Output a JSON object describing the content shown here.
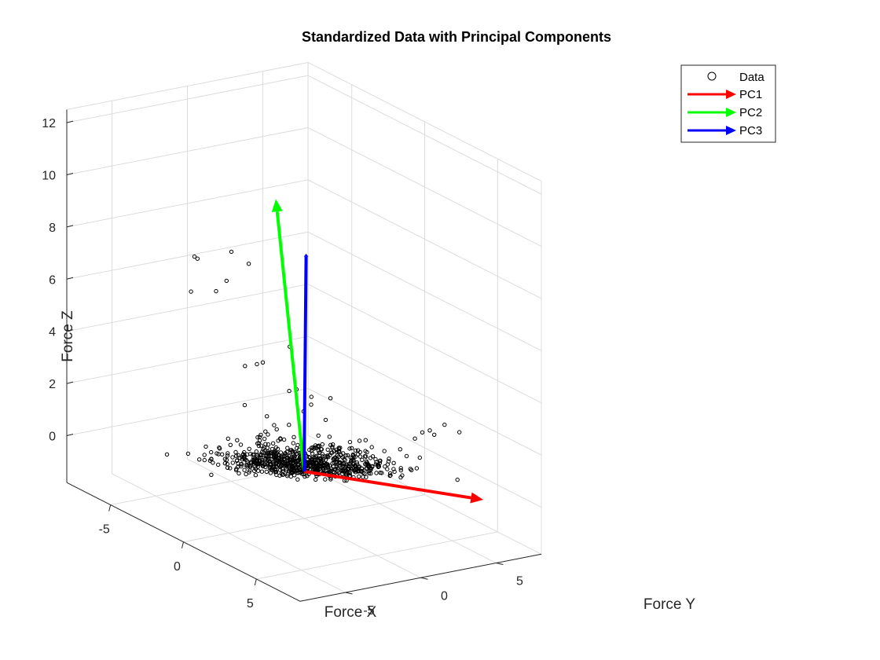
{
  "chart_data": {
    "type": "scatter",
    "title": "Standardized Data with Principal Components",
    "xlabel": "Force X",
    "ylabel": "Force Y",
    "zlabel": "Force Z",
    "xlim": [
      -8,
      8
    ],
    "ylim": [
      -8,
      8
    ],
    "zlim": [
      -1.8,
      12.5
    ],
    "xticks": [
      -5,
      0,
      5
    ],
    "yticks": [
      -5,
      0,
      5
    ],
    "zticks": [
      0,
      2,
      4,
      6,
      8,
      10,
      12
    ],
    "grid": true,
    "legend_position": "top-right",
    "legend": [
      "Data",
      "PC1",
      "PC2",
      "PC3"
    ],
    "colors": {
      "PC1": "#ff0000",
      "PC2": "#00ff00",
      "PC3": "#0000ff",
      "Data": "#000000"
    },
    "series": [
      {
        "name": "Data",
        "marker": "circle-open",
        "points": [
          [
            -7.0,
            -0.5,
            6.3
          ],
          [
            -7.0,
            -0.3,
            6.2
          ],
          [
            -6.2,
            -1.5,
            5.3
          ],
          [
            -5.5,
            0.5,
            6.8
          ],
          [
            -4.8,
            -0.5,
            6.0
          ],
          [
            -5.0,
            -1.0,
            5.6
          ],
          [
            -4.0,
            0.2,
            6.8
          ],
          [
            -2.5,
            -1.5,
            3.5
          ],
          [
            -2.0,
            -0.8,
            3.7
          ],
          [
            -2.2,
            -1.0,
            3.6
          ],
          [
            -1.5,
            0.5,
            4.3
          ],
          [
            -2.0,
            -2.0,
            2.2
          ],
          [
            -1.0,
            -1.5,
            2.0
          ],
          [
            -0.5,
            -0.5,
            3.0
          ],
          [
            0.0,
            -0.5,
            3.2
          ],
          [
            0.5,
            0.0,
            3.0
          ],
          [
            1.0,
            -0.5,
            2.9
          ],
          [
            1.0,
            -1.0,
            2.7
          ],
          [
            1.5,
            0.3,
            3.2
          ],
          [
            2.0,
            -0.5,
            2.6
          ],
          [
            -0.5,
            -1.5,
            1.8
          ],
          [
            0.0,
            -1.0,
            1.9
          ],
          [
            4.5,
            3.0,
            2.2
          ],
          [
            5.0,
            3.5,
            2.6
          ],
          [
            5.5,
            4.0,
            2.9
          ],
          [
            5.0,
            3.8,
            2.4
          ],
          [
            4.8,
            3.2,
            2.5
          ],
          [
            6.0,
            4.5,
            2.7
          ],
          [
            2.5,
            1.0,
            1.4
          ],
          [
            3.0,
            1.5,
            1.2
          ]
        ]
      },
      {
        "name": "PC1",
        "from": [
          0,
          0,
          0
        ],
        "to": [
          6.3,
          5.8,
          0.05
        ]
      },
      {
        "name": "PC2",
        "from": [
          0,
          0,
          0
        ],
        "to": [
          -0.9,
          -1.0,
          10.3
        ]
      },
      {
        "name": "PC3",
        "from": [
          0,
          0,
          0
        ],
        "to": [
          -1.1,
          1.2,
          7.9
        ]
      }
    ]
  }
}
